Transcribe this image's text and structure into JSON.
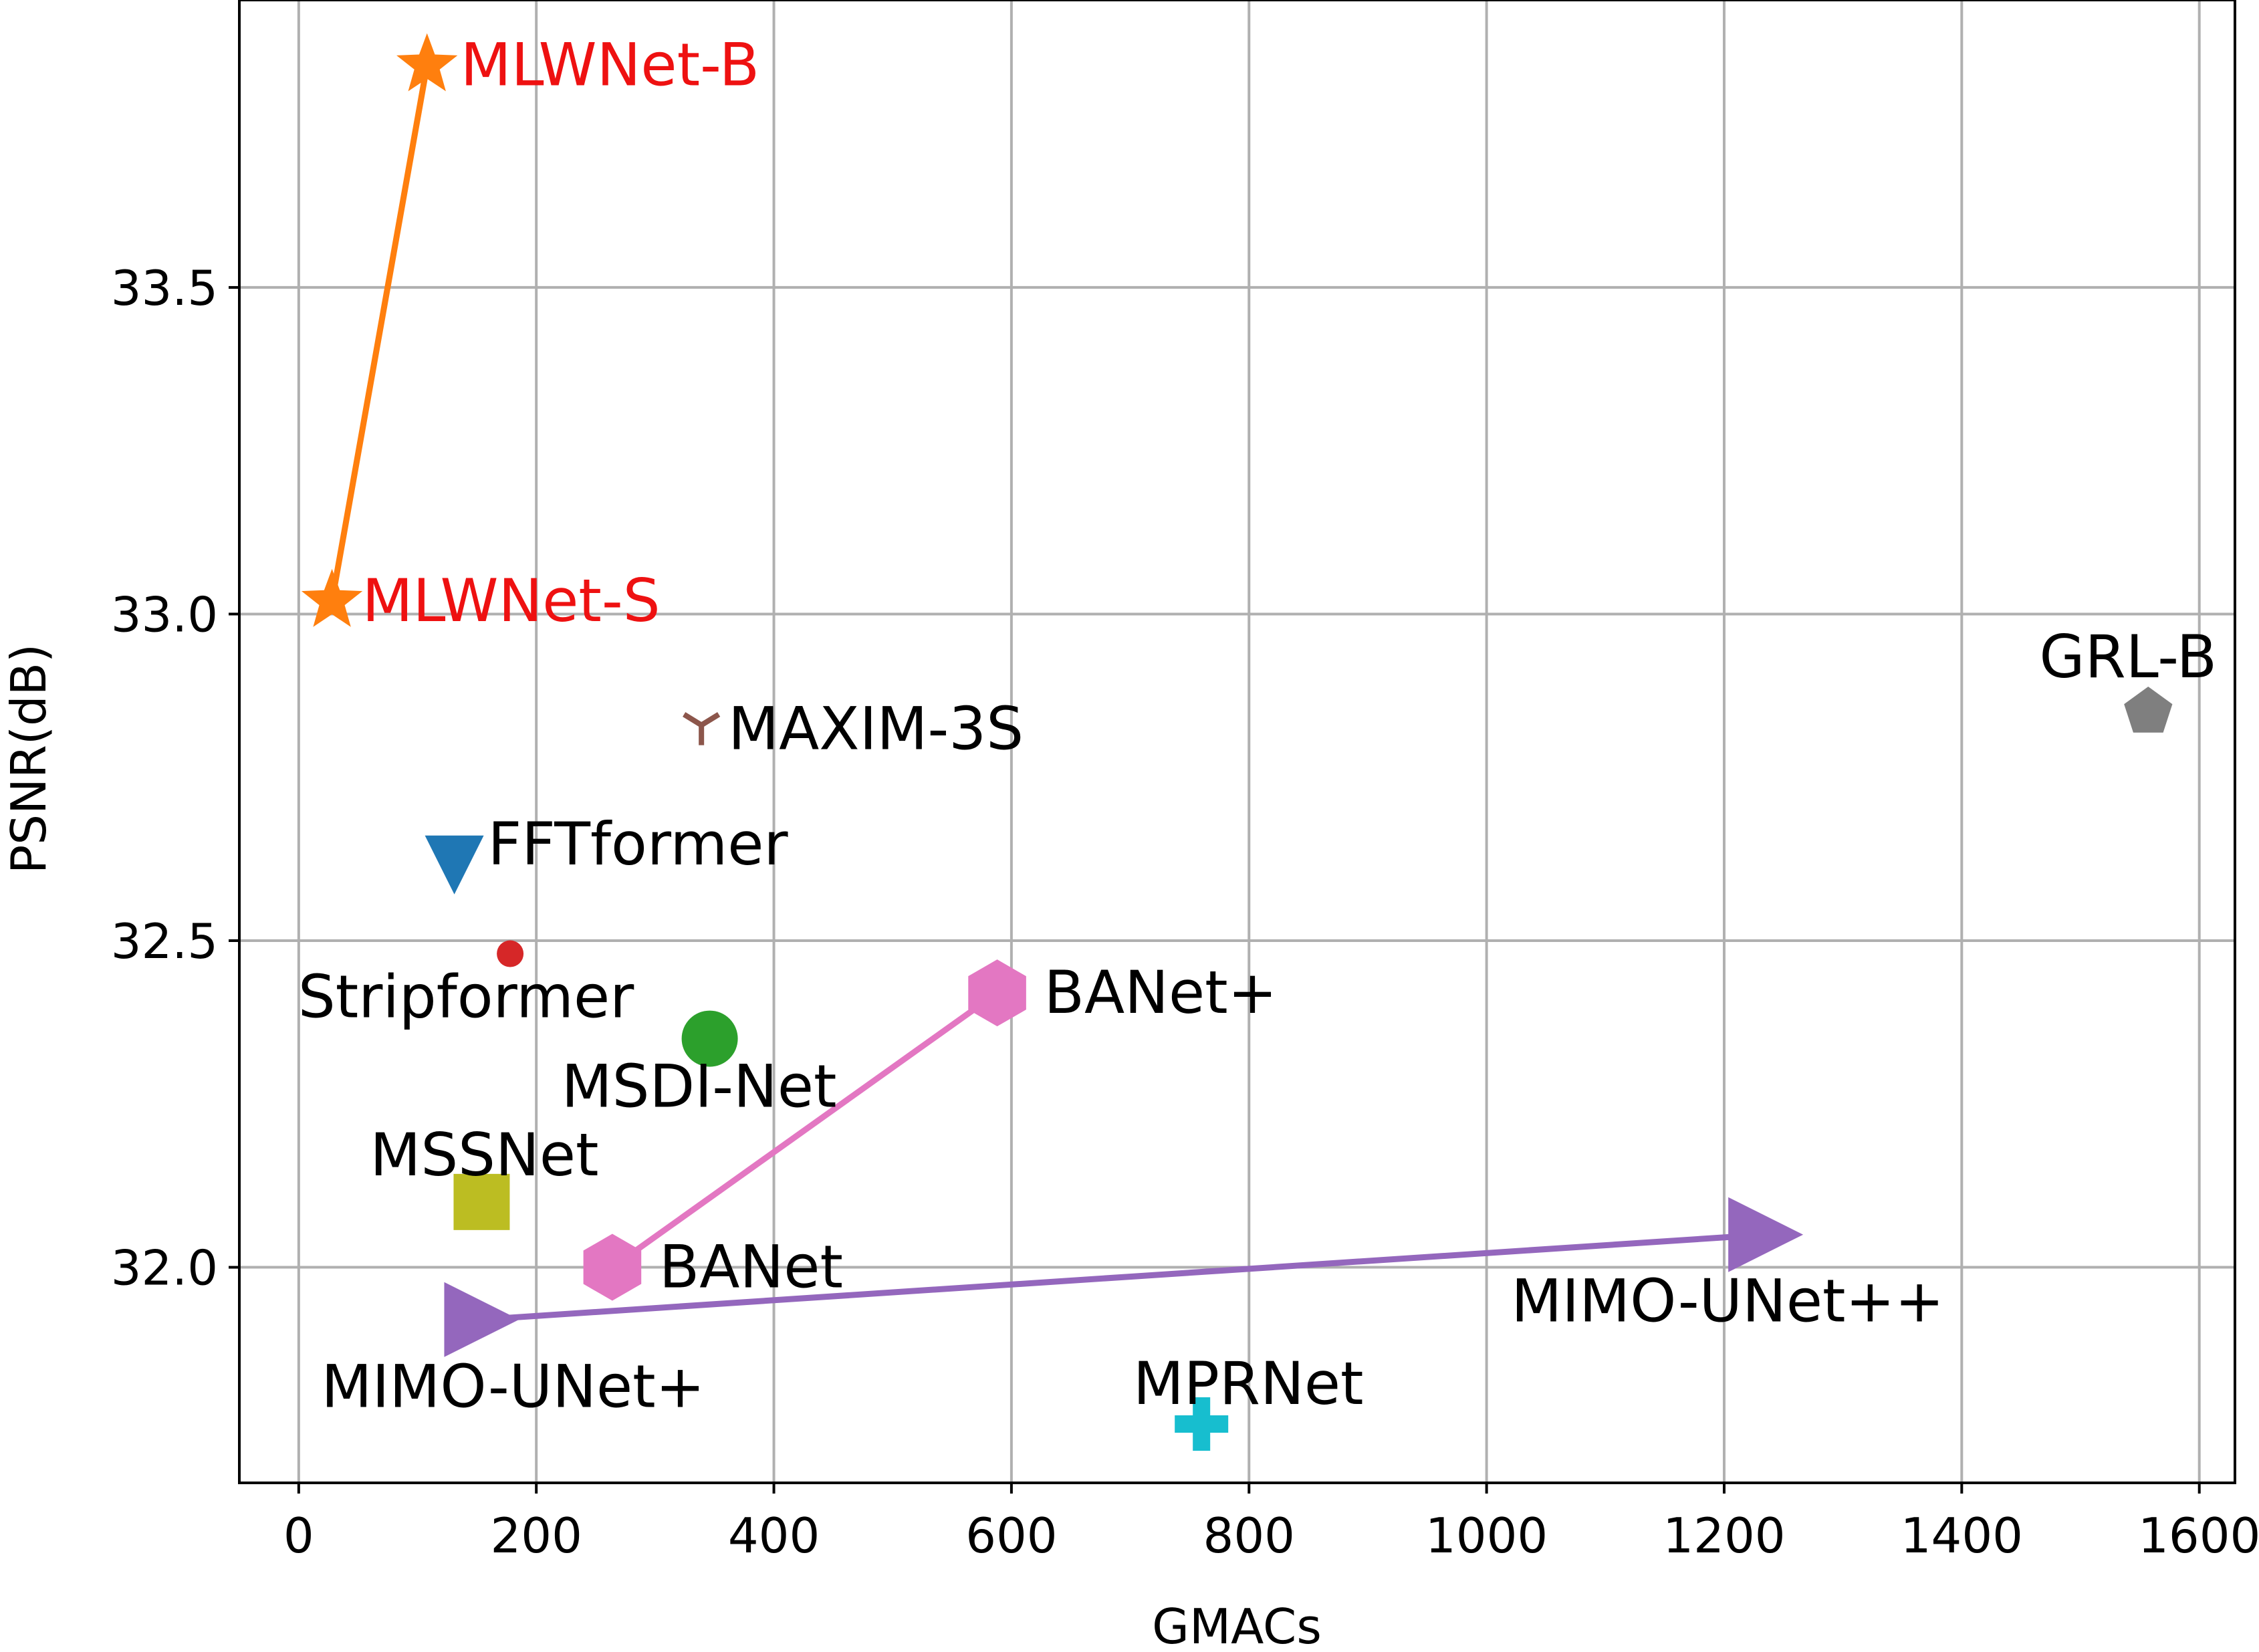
{
  "chart_data": {
    "type": "scatter",
    "xlabel": "GMACs",
    "ylabel": "PSNR(dB)",
    "xlim": [
      -50,
      1630
    ],
    "ylim": [
      31.67,
      33.94
    ],
    "x_ticks": [
      0,
      200,
      400,
      600,
      800,
      1000,
      1200,
      1400,
      1600
    ],
    "y_ticks": [
      32.0,
      32.5,
      33.0,
      33.5
    ],
    "x_tick_labels": [
      "0",
      "200",
      "400",
      "600",
      "800",
      "1000",
      "1200",
      "1400",
      "1600"
    ],
    "y_tick_labels": [
      "32.0",
      "32.5",
      "33.0",
      "33.5"
    ],
    "grid": true,
    "points": [
      {
        "name": "MLWNet-B",
        "x": 108,
        "y": 33.84,
        "marker": "star",
        "color": "#ff7f0e",
        "label_color": "#ee1111"
      },
      {
        "name": "MLWNet-S",
        "x": 28,
        "y": 33.02,
        "marker": "star",
        "color": "#ff7f0e",
        "label_color": "#ee1111"
      },
      {
        "name": "MAXIM-3S",
        "x": 339,
        "y": 32.83,
        "marker": "tri_down",
        "color": "#8c564b",
        "label_color": "#000000"
      },
      {
        "name": "GRL-B",
        "x": 1557,
        "y": 32.85,
        "marker": "pentagon",
        "color": "#7f7f7f",
        "label_color": "#000000"
      },
      {
        "name": "FFTformer",
        "x": 131,
        "y": 32.62,
        "marker": "triangle_down",
        "color": "#1f77b4",
        "label_color": "#000000"
      },
      {
        "name": "Stripformer",
        "x": 178,
        "y": 32.48,
        "marker": "point",
        "color": "#d62728",
        "label_color": "#000000"
      },
      {
        "name": "MSDI-Net",
        "x": 346,
        "y": 32.35,
        "marker": "circle",
        "color": "#2ca02c",
        "label_color": "#000000"
      },
      {
        "name": "BANet+",
        "x": 588,
        "y": 32.42,
        "marker": "hexagon",
        "color": "#e377c2",
        "label_color": "#000000"
      },
      {
        "name": "BANet",
        "x": 264,
        "y": 32.0,
        "marker": "hexagon",
        "color": "#e377c2",
        "label_color": "#000000"
      },
      {
        "name": "MSSNet",
        "x": 154,
        "y": 32.1,
        "marker": "square",
        "color": "#bcbd22",
        "label_color": "#000000"
      },
      {
        "name": "MIMO-UNet+",
        "x": 154,
        "y": 31.92,
        "marker": "triangle_right",
        "color": "#9467bd",
        "label_color": "#000000"
      },
      {
        "name": "MIMO-UNet++",
        "x": 1235,
        "y": 32.05,
        "marker": "triangle_right",
        "color": "#9467bd",
        "label_color": "#000000"
      },
      {
        "name": "MPRNet",
        "x": 760,
        "y": 31.76,
        "marker": "plus",
        "color": "#17becf",
        "label_color": "#000000"
      }
    ],
    "lines": [
      {
        "from": "MLWNet-S",
        "to": "MLWNet-B",
        "color": "#ff7f0e"
      },
      {
        "from": "BANet",
        "to": "BANet+",
        "color": "#e377c2"
      },
      {
        "from": "MIMO-UNet+",
        "to": "MIMO-UNet++",
        "color": "#9467bd"
      }
    ]
  }
}
